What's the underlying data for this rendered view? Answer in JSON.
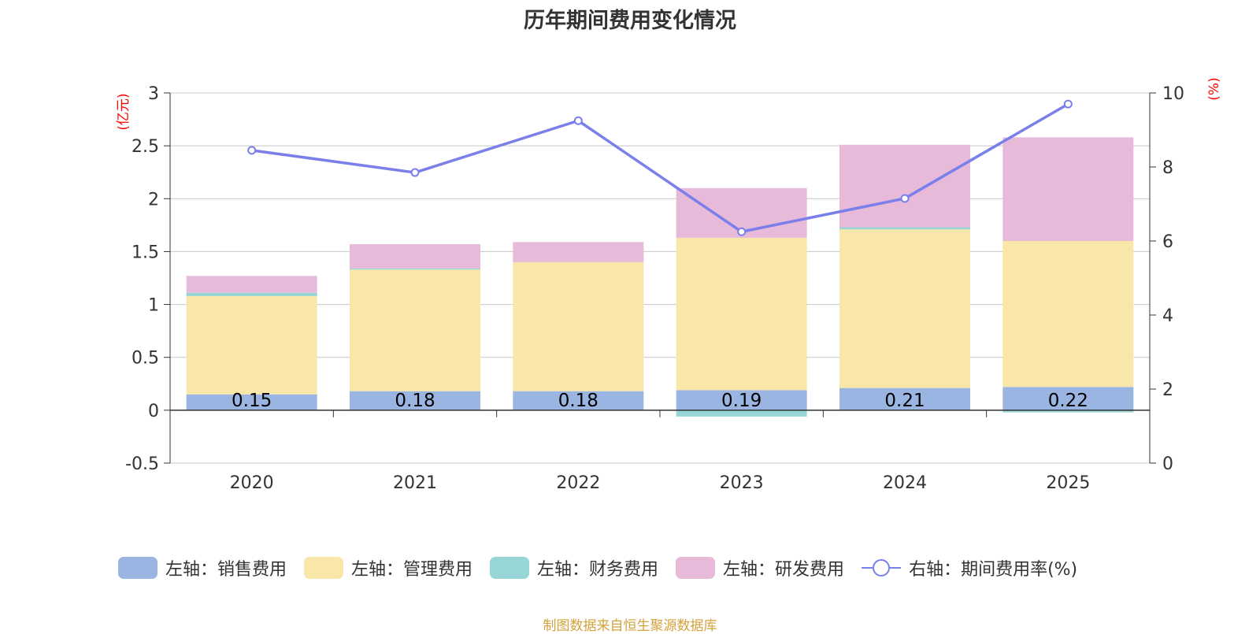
{
  "chart_data": {
    "type": "bar",
    "stacked": true,
    "title": "历年期间费用变化情况",
    "categories": [
      "2020",
      "2021",
      "2022",
      "2023",
      "2024",
      "2025"
    ],
    "left_axis": {
      "label": "(亿元)",
      "ylim": [
        -0.5,
        3
      ],
      "ticks": [
        "3",
        "2.5",
        "2",
        "1.5",
        "1",
        "0.5",
        "0",
        "-0.5"
      ],
      "tick_values": [
        3,
        2.5,
        2,
        1.5,
        1,
        0.5,
        0,
        -0.5
      ]
    },
    "right_axis": {
      "label": "(%)",
      "ylim": [
        0,
        10
      ],
      "ticks": [
        "10",
        "8",
        "6",
        "4",
        "2",
        "0"
      ],
      "tick_values": [
        10,
        8,
        6,
        4,
        2,
        0
      ]
    },
    "series": [
      {
        "name": "左轴：销售费用",
        "color": "#9bb5e2",
        "values": [
          0.15,
          0.18,
          0.18,
          0.19,
          0.21,
          0.22
        ],
        "data_labels": [
          "0.15",
          "0.18",
          "0.18",
          "0.19",
          "0.21",
          "0.22"
        ]
      },
      {
        "name": "左轴：管理费用",
        "color": "#f8e7a9",
        "values": [
          0.93,
          1.15,
          1.22,
          1.44,
          1.5,
          1.38
        ]
      },
      {
        "name": "左轴：财务费用",
        "color": "#97d5d7",
        "values": [
          0.03,
          0.01,
          0.0,
          -0.06,
          0.02,
          -0.02
        ]
      },
      {
        "name": "左轴：研发费用",
        "color": "#e8bad9",
        "values": [
          0.16,
          0.23,
          0.19,
          0.47,
          0.78,
          0.98
        ]
      },
      {
        "name": "右轴：期间费用率(%)",
        "type": "line",
        "axis": "right",
        "color": "#7a7fea",
        "values": [
          8.45,
          7.85,
          9.25,
          6.25,
          7.15,
          9.7
        ]
      }
    ]
  },
  "footer": {
    "source": "制图数据来自恒生聚源数据库"
  }
}
